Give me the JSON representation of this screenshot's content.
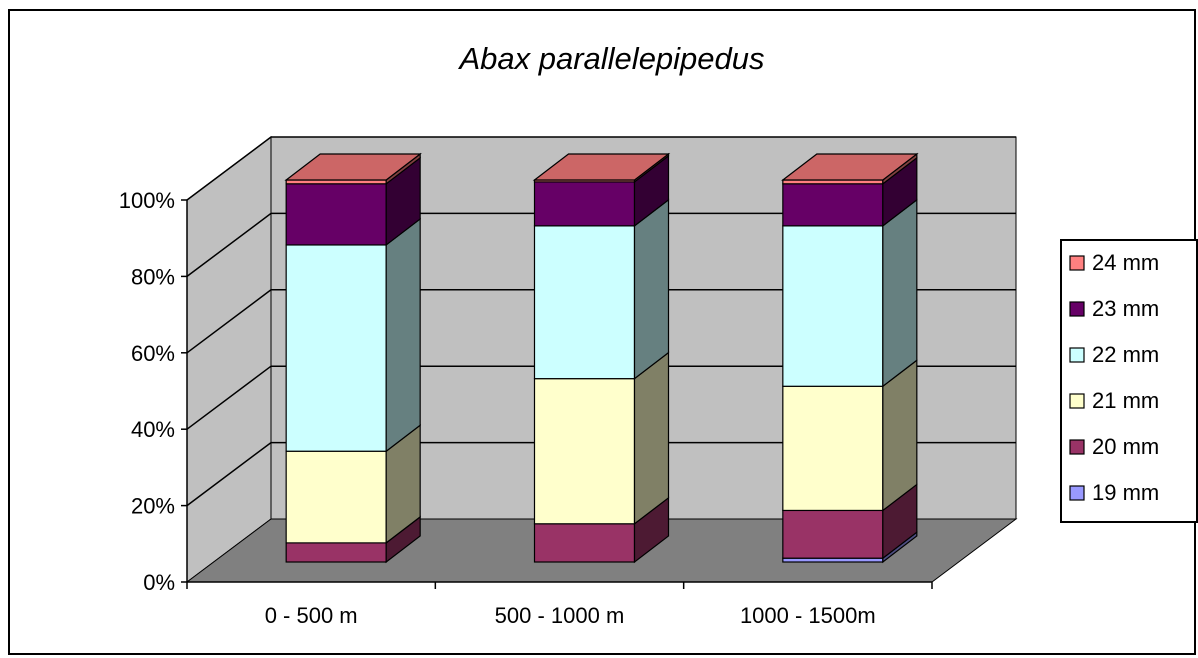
{
  "chart_data": {
    "type": "bar",
    "stacked": "percent",
    "style": "3d",
    "title": "Abax parallelepipedus",
    "xlabel": "",
    "ylabel": "",
    "ylim": [
      0,
      100
    ],
    "y_ticks": [
      "0%",
      "20%",
      "40%",
      "60%",
      "80%",
      "100%"
    ],
    "categories": [
      "0 - 500 m",
      "500 - 1000 m",
      "1000 - 1500m"
    ],
    "series": [
      {
        "name": "19 mm",
        "values": [
          0,
          0,
          1
        ],
        "color": "#9999ff"
      },
      {
        "name": "20 mm",
        "values": [
          5,
          10,
          12.5
        ],
        "color": "#993366"
      },
      {
        "name": "21 mm",
        "values": [
          24,
          38,
          32.5
        ],
        "color": "#ffffcc"
      },
      {
        "name": "22 mm",
        "values": [
          54,
          40,
          42
        ],
        "color": "#ccffff"
      },
      {
        "name": "23 mm",
        "values": [
          16,
          11.5,
          11
        ],
        "color": "#660066"
      },
      {
        "name": "24 mm",
        "values": [
          1,
          0.5,
          1
        ],
        "color": "#ff8080"
      }
    ],
    "legend_position": "right",
    "grid": true,
    "wall_color": "#c0c0c0",
    "floor_color": "#808080"
  }
}
